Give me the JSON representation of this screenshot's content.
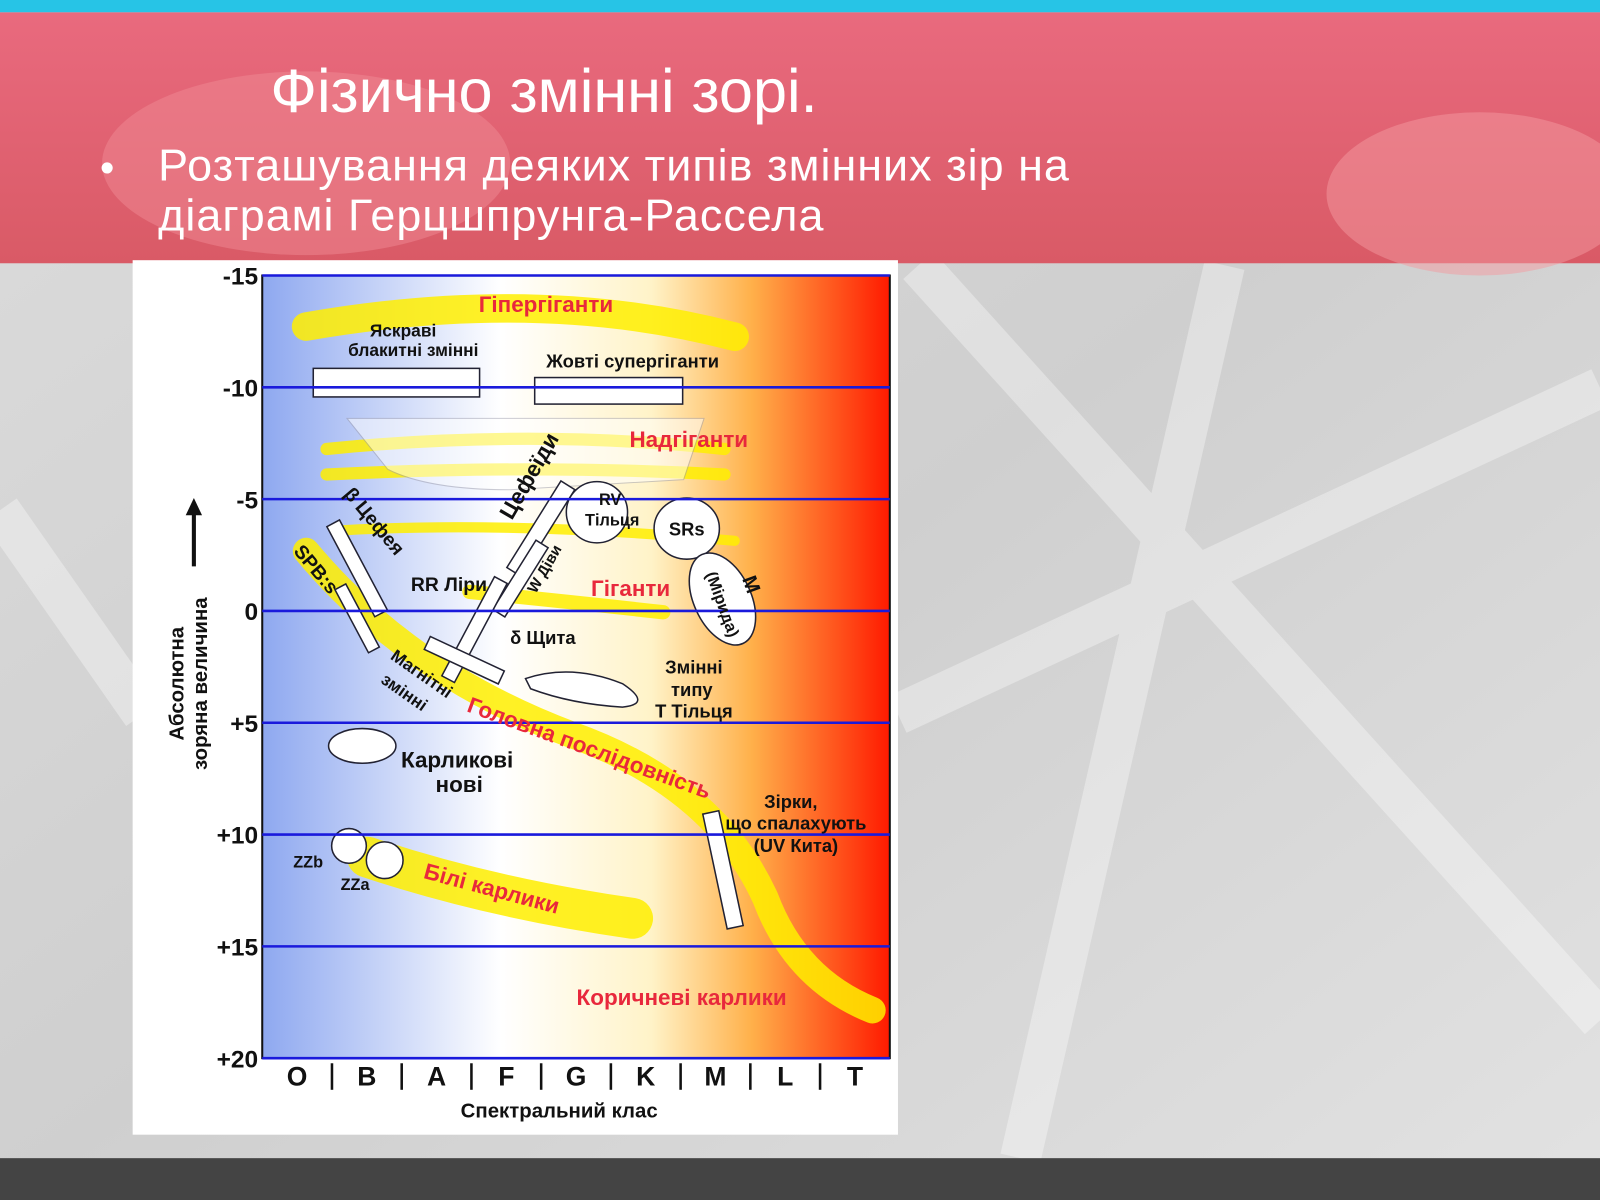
{
  "slide": {
    "title": "Фізично змінні зорі.",
    "bullet": [
      "Розташування деяких типів змінних зір на",
      "діаграмі Герцшпрунга-Рассела"
    ],
    "diagram": {
      "yticks": [
        "-15",
        "-10",
        "-5",
        "0",
        "+5",
        "+10",
        "+15",
        "+20"
      ],
      "classes": [
        "O",
        "B",
        "A",
        "F",
        "G",
        "K",
        "M",
        "L",
        "T"
      ],
      "y_label": [
        "Абсолютна",
        "зоряна величина"
      ],
      "x_label": "Спектральний клас",
      "labels": [
        "Гіпергіганти",
        "Яскраві",
        "блакитні змінні",
        "Жовті супергіганти",
        "Надгіганти",
        "Цефеїди",
        "β Цефея",
        "SPB:s",
        "RV",
        "Тільця",
        "SRs",
        "M",
        "(Мірида)",
        "RR Ліри",
        "W Діви",
        "Гіганти",
        "δ Щита",
        "Магнітні",
        "змінні",
        "Змінні",
        "типу",
        "Т Тільця",
        "Головна послідовність",
        "Карликові",
        "нові",
        "Зірки,",
        "що спалахують",
        "(UV Кита)",
        "ZZb",
        "ZZa",
        "Білі карлики",
        "Коричневі карлики"
      ]
    }
  }
}
